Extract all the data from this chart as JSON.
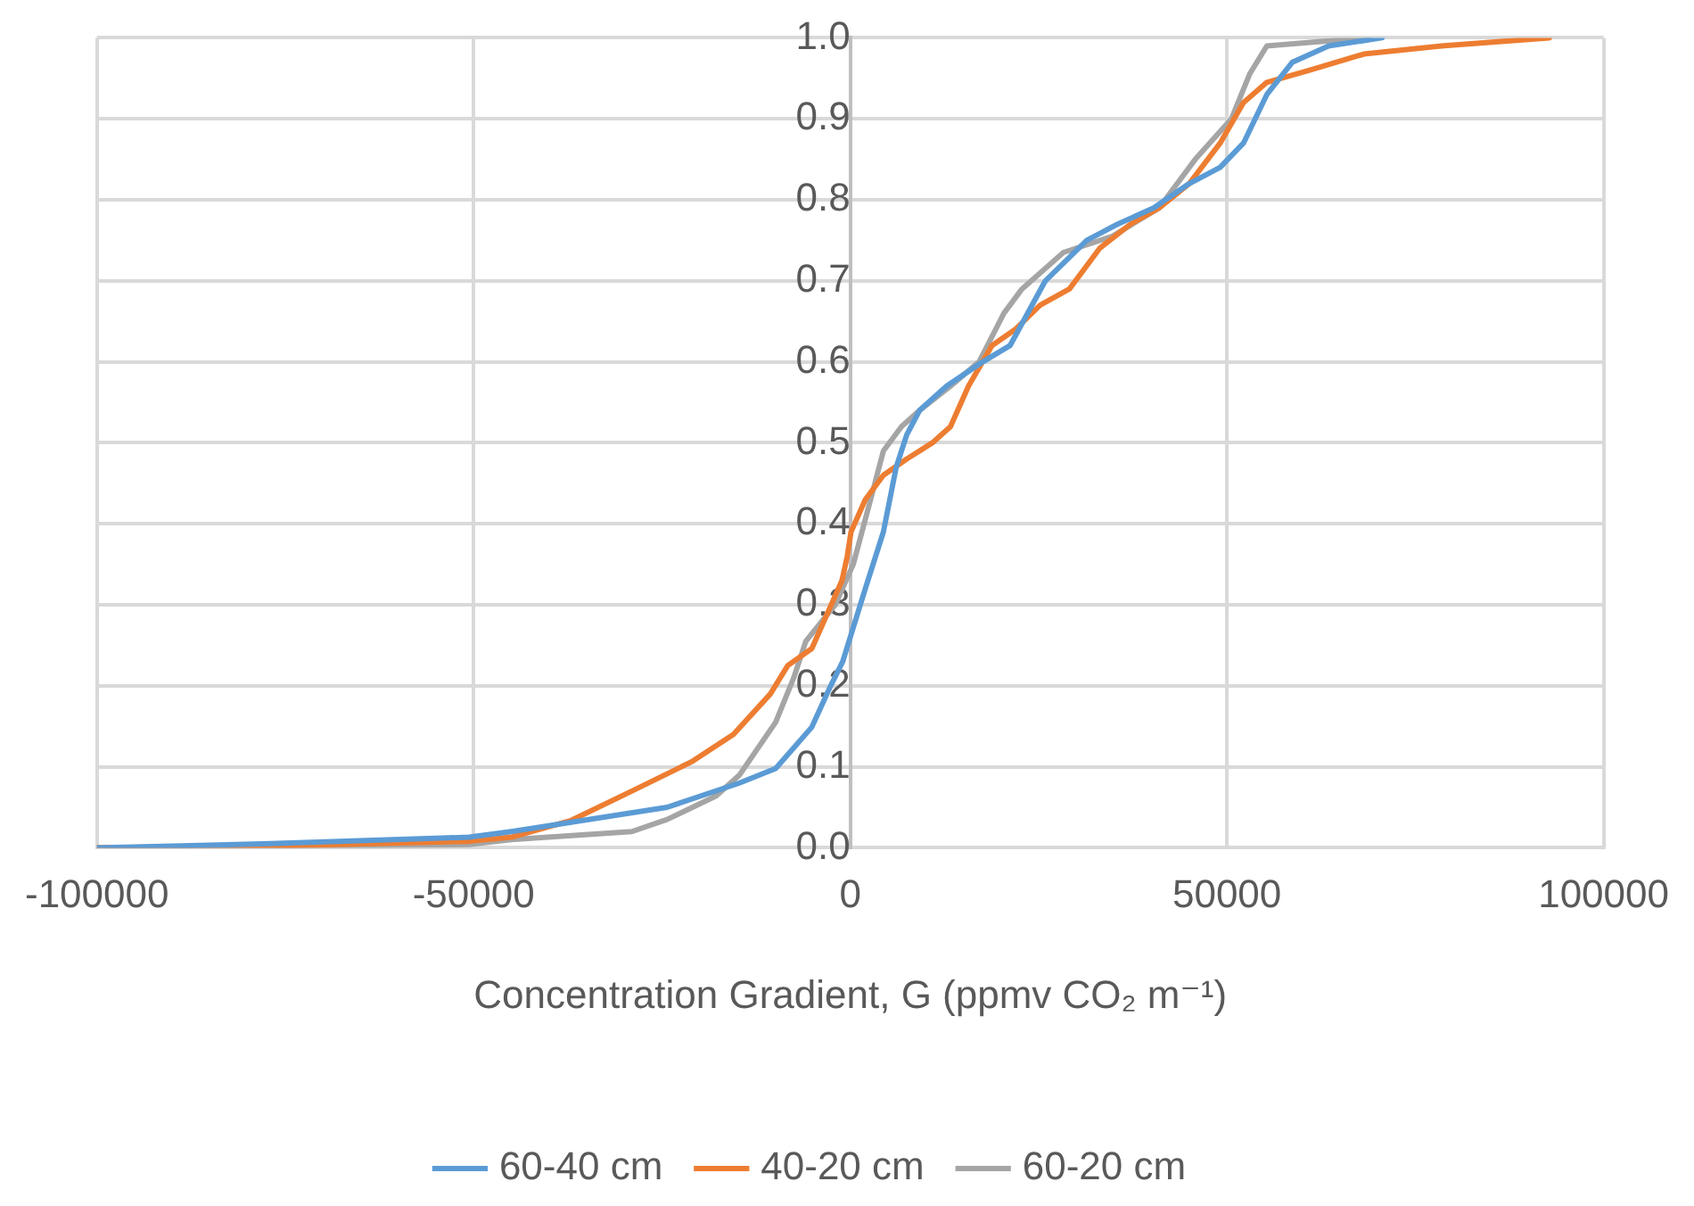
{
  "chart_data": {
    "type": "line",
    "xlabel": "Concentration Gradient, G (ppmv CO₂ m⁻¹)",
    "xlim": [
      -100000,
      100000
    ],
    "xticks": [
      -100000,
      -50000,
      0,
      50000,
      100000
    ],
    "ylim": [
      0,
      1
    ],
    "yticks": [
      {
        "value": 0,
        "label": "0.0"
      },
      {
        "value": 0.1,
        "label": "0.1"
      },
      {
        "value": 0.2,
        "label": "0.2"
      },
      {
        "value": 0.3,
        "label": "0.3"
      },
      {
        "value": 0.4,
        "label": "0.4"
      },
      {
        "value": 0.5,
        "label": "0.5"
      },
      {
        "value": 0.6,
        "label": "0.6"
      },
      {
        "value": 0.7,
        "label": "0.7"
      },
      {
        "value": 0.8,
        "label": "0.8"
      },
      {
        "value": 0.9,
        "label": "0.9"
      },
      {
        "value": 1,
        "label": "1.0"
      }
    ],
    "grid": true,
    "legend": "bottom",
    "marker": "none",
    "line_style": "solid",
    "series": [
      {
        "name": "60-40 cm",
        "color": "#5b9bd5",
        "x": [
          -100000,
          -77000,
          -50600,
          -45000,
          -24300,
          -14700,
          -9900,
          -5100,
          -2750,
          -1000,
          2000,
          4400,
          6100,
          7500,
          9200,
          12800,
          17600,
          21200,
          25900,
          31400,
          35500,
          40300,
          45000,
          49100,
          52200,
          55300,
          58700,
          63500,
          70600
        ],
        "values": [
          0,
          0.005,
          0.013,
          0.02,
          0.05,
          0.08,
          0.098,
          0.149,
          0.197,
          0.23,
          0.32,
          0.39,
          0.47,
          0.51,
          0.54,
          0.57,
          0.6,
          0.62,
          0.7,
          0.75,
          0.77,
          0.79,
          0.82,
          0.84,
          0.87,
          0.93,
          0.97,
          0.99,
          1
        ]
      },
      {
        "name": "40-20 cm",
        "color": "#ed7d31",
        "x": [
          -100000,
          -77000,
          -50600,
          -45000,
          -37000,
          -29000,
          -21100,
          -15500,
          -10600,
          -8300,
          -5100,
          -1100,
          -400,
          100,
          2000,
          4400,
          7500,
          10900,
          13300,
          15700,
          18800,
          21900,
          25200,
          29100,
          33100,
          37200,
          41000,
          45000,
          49100,
          52200,
          55300,
          61000,
          68200,
          78500,
          92800
        ],
        "values": [
          0,
          0.002,
          0.008,
          0.013,
          0.034,
          0.07,
          0.106,
          0.14,
          0.19,
          0.225,
          0.246,
          0.33,
          0.36,
          0.39,
          0.43,
          0.46,
          0.48,
          0.5,
          0.52,
          0.57,
          0.62,
          0.64,
          0.67,
          0.69,
          0.74,
          0.77,
          0.79,
          0.82,
          0.87,
          0.92,
          0.945,
          0.96,
          0.98,
          0.99,
          1
        ]
      },
      {
        "name": "60-20 cm",
        "color": "#a5a5a5",
        "x": [
          -100000,
          -50600,
          -45000,
          -29000,
          -24300,
          -17800,
          -14700,
          -9900,
          -7500,
          -5900,
          -2000,
          400,
          2700,
          4400,
          6800,
          9200,
          13300,
          17100,
          20400,
          22800,
          28300,
          34800,
          41000,
          45800,
          50600,
          53000,
          55300,
          61800,
          68900
        ],
        "values": [
          0,
          0.004,
          0.01,
          0.02,
          0.035,
          0.064,
          0.09,
          0.155,
          0.21,
          0.255,
          0.3,
          0.35,
          0.43,
          0.49,
          0.52,
          0.54,
          0.57,
          0.6,
          0.66,
          0.69,
          0.735,
          0.755,
          0.79,
          0.85,
          0.9,
          0.955,
          0.99,
          0.995,
          1
        ]
      }
    ]
  }
}
